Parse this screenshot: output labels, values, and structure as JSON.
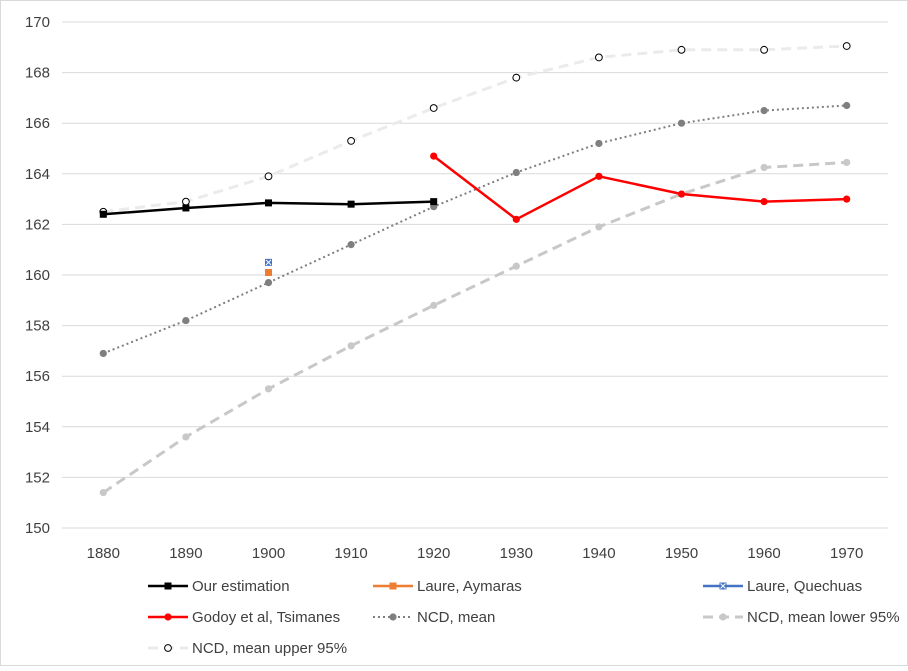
{
  "chart_data": {
    "type": "line",
    "title": "",
    "xlabel": "",
    "ylabel": "",
    "ylim": [
      150,
      170
    ],
    "y_ticks": [
      150,
      152,
      154,
      156,
      158,
      160,
      162,
      164,
      166,
      168,
      170
    ],
    "x": [
      1880,
      1890,
      1900,
      1910,
      1920,
      1930,
      1940,
      1950,
      1960,
      1970
    ],
    "grid": "horizontal",
    "legend_position": "bottom",
    "series": [
      {
        "name": "NCD, mean upper 95%",
        "color": "#ebebeb",
        "marker_color": "#000000",
        "style": "dash-open-circle",
        "values": [
          162.5,
          162.9,
          163.9,
          165.3,
          166.6,
          167.8,
          168.6,
          168.9,
          168.9,
          169.05
        ]
      },
      {
        "name": "NCD, mean lower 95%",
        "color": "#c8c8c8",
        "style": "dash",
        "values": [
          151.4,
          153.6,
          155.5,
          157.2,
          158.8,
          160.35,
          161.9,
          163.2,
          164.25,
          164.45
        ]
      },
      {
        "name": "NCD, mean",
        "color": "#7f7f7f",
        "style": "dot",
        "values": [
          156.9,
          158.2,
          159.7,
          161.2,
          162.7,
          164.05,
          165.2,
          166.0,
          166.5,
          166.7
        ]
      },
      {
        "name": "Our estimation",
        "color": "#000000",
        "style": "solid-square",
        "values": [
          162.4,
          162.65,
          162.85,
          162.8,
          162.9,
          null,
          null,
          null,
          null,
          null
        ]
      },
      {
        "name": "Laure, Aymaras",
        "color": "#ed7d31",
        "style": "square",
        "values": [
          null,
          null,
          160.1,
          null,
          null,
          null,
          null,
          null,
          null,
          null
        ]
      },
      {
        "name": "Laure, Quechuas",
        "color": "#4472c4",
        "style": "square-x",
        "values": [
          null,
          null,
          160.5,
          null,
          null,
          null,
          null,
          null,
          null,
          null
        ]
      },
      {
        "name": "Godoy et al, Tsimanes",
        "color": "#ff0000",
        "style": "solid-dot",
        "values": [
          null,
          null,
          null,
          null,
          164.7,
          162.2,
          163.9,
          163.2,
          162.9,
          163.0
        ]
      }
    ],
    "legend_order": [
      "Our estimation",
      "Laure, Aymaras",
      "Laure, Quechuas",
      "Godoy et al, Tsimanes",
      "NCD, mean",
      "NCD, mean lower 95%",
      "NCD, mean upper 95%"
    ]
  }
}
